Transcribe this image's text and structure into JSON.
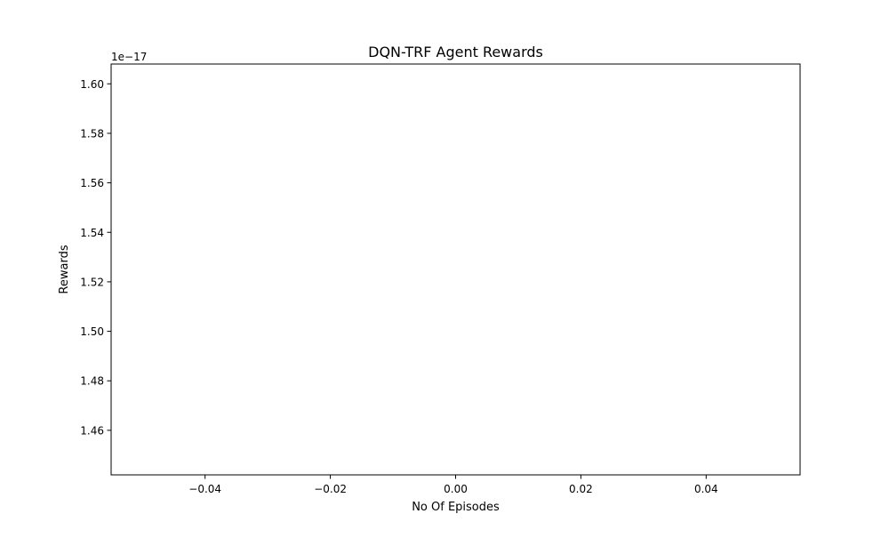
{
  "chart_data": {
    "type": "line",
    "title": "DQN-TRF Agent Rewards",
    "xlabel": "No Of Episodes",
    "ylabel": "Rewards",
    "y_offset_label": "1e−17",
    "xlim": [
      -0.055,
      0.055
    ],
    "ylim": [
      1.442,
      1.608
    ],
    "x_ticks": [
      {
        "value": -0.04,
        "label": "−0.04"
      },
      {
        "value": -0.02,
        "label": "−0.02"
      },
      {
        "value": 0.0,
        "label": "0.00"
      },
      {
        "value": 0.02,
        "label": "0.02"
      },
      {
        "value": 0.04,
        "label": "0.04"
      }
    ],
    "y_ticks": [
      {
        "value": 1.46,
        "label": "1.46"
      },
      {
        "value": 1.48,
        "label": "1.48"
      },
      {
        "value": 1.5,
        "label": "1.50"
      },
      {
        "value": 1.52,
        "label": "1.52"
      },
      {
        "value": 1.54,
        "label": "1.54"
      },
      {
        "value": 1.56,
        "label": "1.56"
      },
      {
        "value": 1.58,
        "label": "1.58"
      },
      {
        "value": 1.6,
        "label": "1.60"
      }
    ],
    "series": [],
    "grid": false
  }
}
